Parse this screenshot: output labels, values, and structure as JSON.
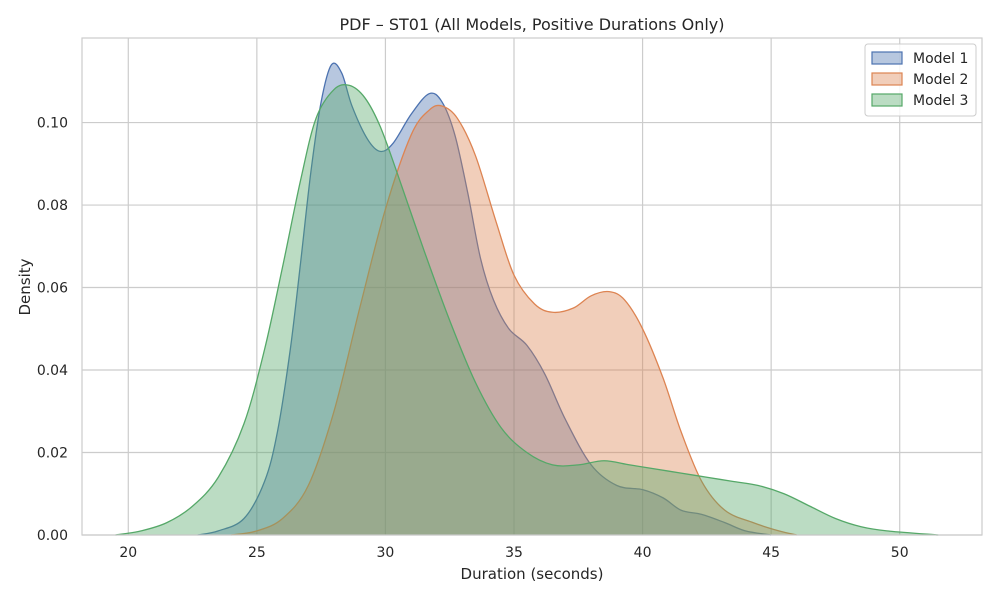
{
  "chart_data": {
    "type": "area",
    "title": "PDF – ST01 (All Models, Positive Durations Only)",
    "xlabel": "Duration (seconds)",
    "ylabel": "Density",
    "xlim": [
      18.2,
      53.2
    ],
    "ylim": [
      0,
      0.1205
    ],
    "x_ticks": [
      20,
      25,
      30,
      35,
      40,
      45,
      50
    ],
    "x_tick_labels": [
      "20",
      "25",
      "30",
      "35",
      "40",
      "45",
      "50"
    ],
    "y_ticks": [
      0,
      0.02,
      0.04,
      0.06,
      0.08,
      0.1
    ],
    "y_tick_labels": [
      "0.00",
      "0.02",
      "0.04",
      "0.06",
      "0.08",
      "0.10"
    ],
    "grid": true,
    "legend_position": "top-right",
    "series": [
      {
        "name": "Model 1",
        "color": "#4c72b0",
        "points": [
          [
            22.7,
            0
          ],
          [
            23.5,
            0.001
          ],
          [
            24.5,
            0.004
          ],
          [
            25.3,
            0.013
          ],
          [
            25.8,
            0.025
          ],
          [
            26.3,
            0.045
          ],
          [
            26.7,
            0.066
          ],
          [
            27.1,
            0.088
          ],
          [
            27.5,
            0.105
          ],
          [
            27.9,
            0.114
          ],
          [
            28.3,
            0.112
          ],
          [
            28.7,
            0.104
          ],
          [
            29.3,
            0.096
          ],
          [
            29.8,
            0.093
          ],
          [
            30.3,
            0.095
          ],
          [
            31.0,
            0.102
          ],
          [
            31.7,
            0.107
          ],
          [
            32.2,
            0.105
          ],
          [
            32.7,
            0.097
          ],
          [
            33.2,
            0.083
          ],
          [
            33.7,
            0.067
          ],
          [
            34.2,
            0.057
          ],
          [
            34.8,
            0.05
          ],
          [
            35.5,
            0.046
          ],
          [
            36.2,
            0.039
          ],
          [
            37.0,
            0.028
          ],
          [
            38.0,
            0.017
          ],
          [
            39.0,
            0.012
          ],
          [
            40.0,
            0.011
          ],
          [
            40.8,
            0.009
          ],
          [
            41.5,
            0.006
          ],
          [
            42.3,
            0.005
          ],
          [
            43.2,
            0.003
          ],
          [
            44.0,
            0.001
          ],
          [
            45.0,
            0
          ]
        ]
      },
      {
        "name": "Model 2",
        "color": "#dd8452",
        "points": [
          [
            24.0,
            0
          ],
          [
            25.0,
            0.001
          ],
          [
            26.0,
            0.004
          ],
          [
            27.0,
            0.012
          ],
          [
            28.0,
            0.03
          ],
          [
            29.0,
            0.055
          ],
          [
            30.0,
            0.079
          ],
          [
            31.0,
            0.097
          ],
          [
            31.7,
            0.103
          ],
          [
            32.2,
            0.104
          ],
          [
            32.8,
            0.101
          ],
          [
            33.5,
            0.092
          ],
          [
            34.3,
            0.076
          ],
          [
            35.0,
            0.063
          ],
          [
            35.8,
            0.056
          ],
          [
            36.5,
            0.054
          ],
          [
            37.3,
            0.055
          ],
          [
            38.0,
            0.058
          ],
          [
            38.7,
            0.059
          ],
          [
            39.3,
            0.057
          ],
          [
            40.0,
            0.05
          ],
          [
            40.8,
            0.038
          ],
          [
            41.5,
            0.025
          ],
          [
            42.3,
            0.013
          ],
          [
            43.2,
            0.006
          ],
          [
            44.3,
            0.003
          ],
          [
            45.3,
            0.001
          ],
          [
            46.0,
            0
          ]
        ]
      },
      {
        "name": "Model 3",
        "color": "#55a868",
        "points": [
          [
            19.5,
            0
          ],
          [
            20.5,
            0.001
          ],
          [
            21.5,
            0.003
          ],
          [
            22.5,
            0.007
          ],
          [
            23.5,
            0.014
          ],
          [
            24.5,
            0.027
          ],
          [
            25.3,
            0.045
          ],
          [
            26.0,
            0.065
          ],
          [
            26.7,
            0.086
          ],
          [
            27.3,
            0.101
          ],
          [
            28.0,
            0.108
          ],
          [
            28.6,
            0.109
          ],
          [
            29.2,
            0.106
          ],
          [
            29.8,
            0.099
          ],
          [
            30.5,
            0.087
          ],
          [
            31.5,
            0.069
          ],
          [
            32.5,
            0.052
          ],
          [
            33.5,
            0.037
          ],
          [
            34.5,
            0.026
          ],
          [
            35.5,
            0.02
          ],
          [
            36.5,
            0.017
          ],
          [
            37.5,
            0.017
          ],
          [
            38.5,
            0.018
          ],
          [
            39.5,
            0.017
          ],
          [
            40.5,
            0.016
          ],
          [
            41.5,
            0.015
          ],
          [
            42.5,
            0.014
          ],
          [
            43.5,
            0.013
          ],
          [
            44.5,
            0.012
          ],
          [
            45.5,
            0.01
          ],
          [
            46.5,
            0.007
          ],
          [
            47.5,
            0.004
          ],
          [
            48.5,
            0.002
          ],
          [
            49.5,
            0.001
          ],
          [
            51.5,
            0
          ]
        ]
      }
    ]
  }
}
